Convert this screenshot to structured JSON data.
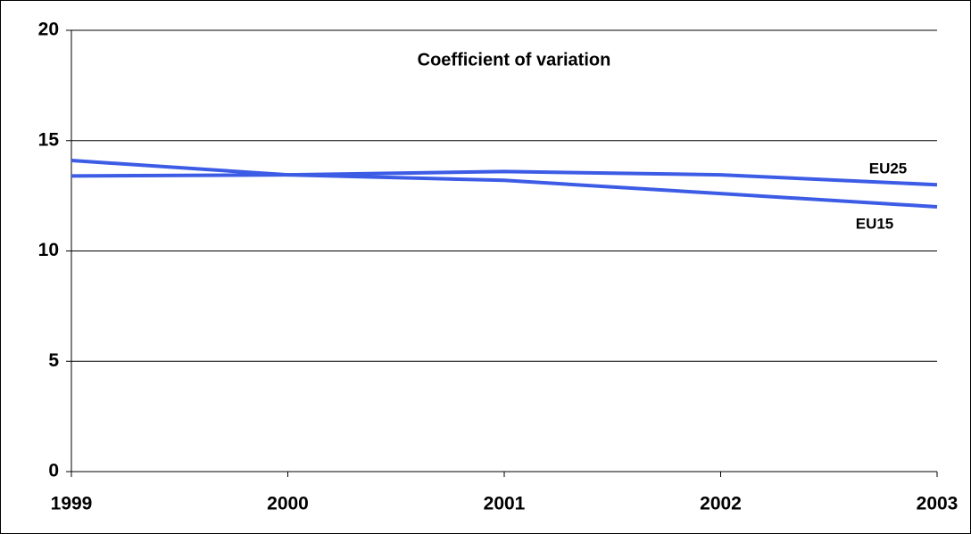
{
  "chart_data": {
    "type": "line",
    "title": "Coefficient of variation",
    "x": [
      1999,
      2000,
      2001,
      2002,
      2003
    ],
    "xlim": [
      1999,
      2003
    ],
    "xticks": [
      1999,
      2000,
      2001,
      2002,
      2003
    ],
    "ylim": [
      0,
      20
    ],
    "yticks": [
      0,
      5,
      10,
      15,
      20
    ],
    "grid": true,
    "series": [
      {
        "name": "EU25",
        "color": "#3d5ce6",
        "values": [
          13.4,
          13.45,
          13.6,
          13.45,
          13.0
        ]
      },
      {
        "name": "EU15",
        "color": "#3d5ce6",
        "values": [
          14.1,
          13.45,
          13.2,
          12.6,
          12.0
        ]
      }
    ]
  }
}
